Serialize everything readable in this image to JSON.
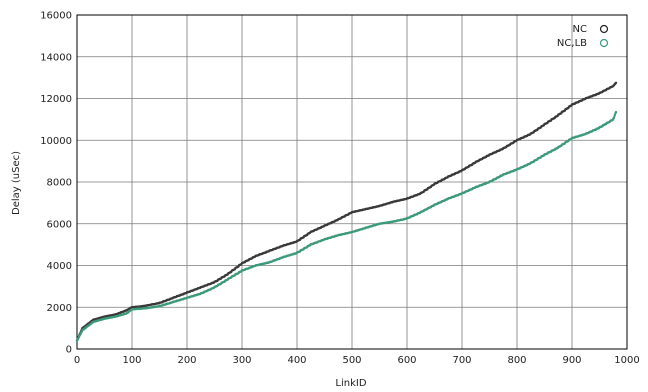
{
  "chart_data": {
    "type": "scatter",
    "title": "",
    "xlabel": "LinkID",
    "ylabel": "Delay (uSec)",
    "xlim": [
      0,
      1000
    ],
    "ylim": [
      0,
      16000
    ],
    "xticks": [
      "0",
      "100",
      "200",
      "300",
      "400",
      "500",
      "600",
      "700",
      "800",
      "900",
      "1000"
    ],
    "yticks": [
      "0",
      "2000",
      "4000",
      "6000",
      "8000",
      "10000",
      "12000",
      "14000",
      "16000"
    ],
    "grid": true,
    "legend_position": "top-right",
    "series": [
      {
        "name": "NC",
        "color": "#3a3a3a",
        "points": [
          [
            0,
            400
          ],
          [
            5,
            700
          ],
          [
            10,
            1000
          ],
          [
            20,
            1200
          ],
          [
            30,
            1400
          ],
          [
            50,
            1550
          ],
          [
            70,
            1650
          ],
          [
            90,
            1850
          ],
          [
            100,
            2000
          ],
          [
            120,
            2050
          ],
          [
            150,
            2200
          ],
          [
            175,
            2450
          ],
          [
            200,
            2700
          ],
          [
            225,
            2950
          ],
          [
            250,
            3200
          ],
          [
            275,
            3600
          ],
          [
            300,
            4100
          ],
          [
            325,
            4450
          ],
          [
            350,
            4700
          ],
          [
            375,
            4950
          ],
          [
            400,
            5150
          ],
          [
            425,
            5600
          ],
          [
            450,
            5900
          ],
          [
            475,
            6200
          ],
          [
            500,
            6550
          ],
          [
            525,
            6700
          ],
          [
            550,
            6850
          ],
          [
            575,
            7050
          ],
          [
            600,
            7200
          ],
          [
            625,
            7450
          ],
          [
            650,
            7900
          ],
          [
            675,
            8250
          ],
          [
            700,
            8550
          ],
          [
            725,
            8950
          ],
          [
            750,
            9300
          ],
          [
            775,
            9600
          ],
          [
            800,
            10000
          ],
          [
            825,
            10300
          ],
          [
            850,
            10750
          ],
          [
            875,
            11200
          ],
          [
            900,
            11700
          ],
          [
            925,
            12000
          ],
          [
            950,
            12250
          ],
          [
            975,
            12600
          ],
          [
            980,
            12750
          ]
        ]
      },
      {
        "name": "NC,LB",
        "color": "#3c9a7a",
        "points": [
          [
            0,
            400
          ],
          [
            5,
            650
          ],
          [
            10,
            900
          ],
          [
            20,
            1100
          ],
          [
            30,
            1300
          ],
          [
            50,
            1450
          ],
          [
            70,
            1550
          ],
          [
            90,
            1700
          ],
          [
            100,
            1900
          ],
          [
            125,
            1950
          ],
          [
            150,
            2050
          ],
          [
            175,
            2250
          ],
          [
            200,
            2450
          ],
          [
            225,
            2650
          ],
          [
            250,
            2950
          ],
          [
            275,
            3350
          ],
          [
            300,
            3750
          ],
          [
            325,
            4000
          ],
          [
            350,
            4150
          ],
          [
            375,
            4400
          ],
          [
            400,
            4600
          ],
          [
            425,
            5000
          ],
          [
            450,
            5250
          ],
          [
            475,
            5450
          ],
          [
            500,
            5600
          ],
          [
            525,
            5800
          ],
          [
            550,
            6000
          ],
          [
            575,
            6100
          ],
          [
            600,
            6250
          ],
          [
            625,
            6550
          ],
          [
            650,
            6900
          ],
          [
            675,
            7200
          ],
          [
            700,
            7450
          ],
          [
            725,
            7750
          ],
          [
            750,
            8000
          ],
          [
            775,
            8350
          ],
          [
            800,
            8600
          ],
          [
            825,
            8900
          ],
          [
            850,
            9300
          ],
          [
            875,
            9650
          ],
          [
            900,
            10100
          ],
          [
            925,
            10300
          ],
          [
            950,
            10600
          ],
          [
            975,
            11000
          ],
          [
            980,
            11350
          ]
        ]
      }
    ]
  }
}
